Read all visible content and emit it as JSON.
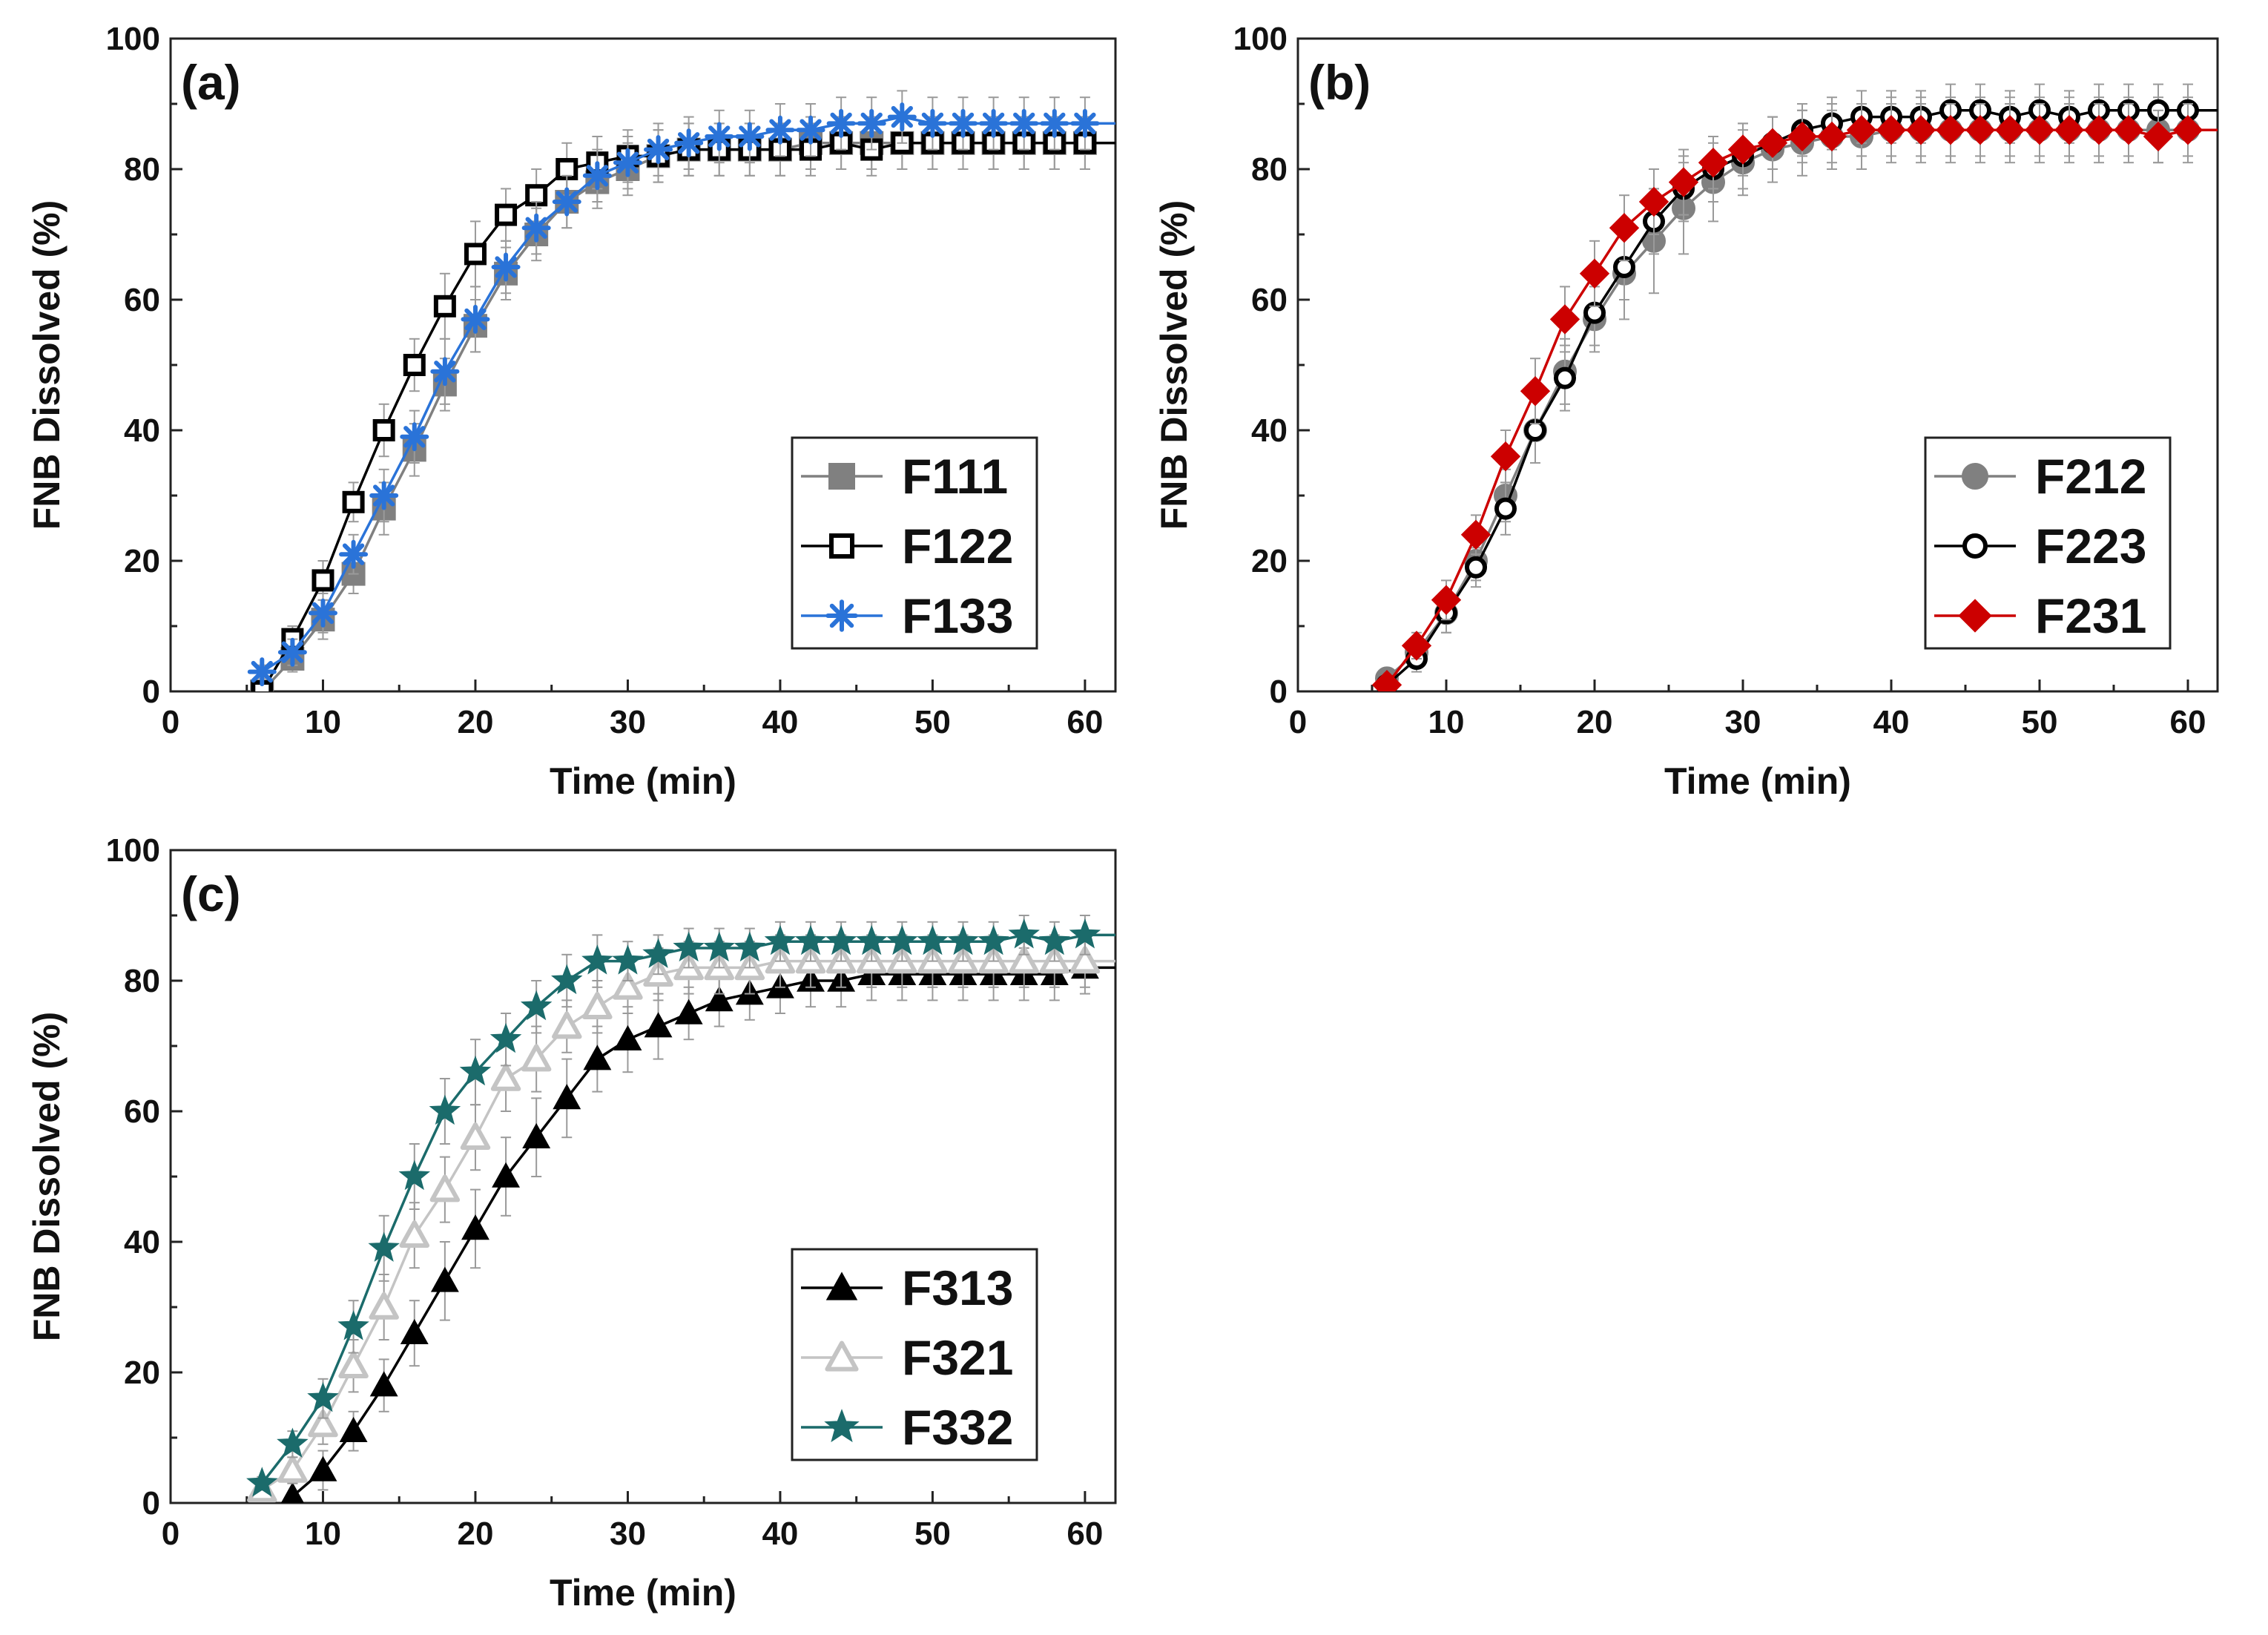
{
  "chart_data": [
    {
      "type": "line",
      "panel_label": "(a)",
      "xlabel": "Time (min)",
      "ylabel": "FNB Dissolved (%)",
      "xlim": [
        0,
        62
      ],
      "ylim": [
        0,
        100
      ],
      "xticks": [
        0,
        10,
        20,
        30,
        40,
        50,
        60
      ],
      "yticks": [
        0,
        20,
        40,
        60,
        80,
        100
      ],
      "legend_position": "bottom-right",
      "x": [
        6,
        8,
        10,
        12,
        14,
        16,
        18,
        20,
        22,
        24,
        26,
        28,
        30,
        32,
        34,
        36,
        38,
        40,
        42,
        44,
        46,
        48,
        50,
        52,
        54,
        56,
        58,
        60
      ],
      "series": [
        {
          "name": "F111",
          "marker": "square-filled",
          "color": "#808080",
          "values": [
            0,
            5,
            11,
            18,
            28,
            37,
            47,
            56,
            64,
            70,
            75,
            78,
            80,
            82,
            83,
            83,
            83,
            83,
            84,
            84,
            84,
            84,
            84,
            84,
            84,
            84,
            84,
            84
          ],
          "errors": [
            1,
            2,
            3,
            3,
            4,
            4,
            4,
            4,
            4,
            4,
            4,
            4,
            4,
            4,
            4,
            4,
            4,
            4,
            4,
            4,
            4,
            4,
            4,
            4,
            4,
            4,
            4,
            4
          ]
        },
        {
          "name": "F122",
          "marker": "square-open",
          "color": "#000000",
          "values": [
            0,
            8,
            17,
            29,
            40,
            50,
            59,
            67,
            73,
            76,
            80,
            81,
            82,
            82,
            83,
            83,
            83,
            83,
            83,
            84,
            83,
            84,
            84,
            84,
            84,
            84,
            84,
            84
          ],
          "errors": [
            1,
            2,
            3,
            3,
            4,
            4,
            5,
            5,
            4,
            4,
            4,
            4,
            4,
            4,
            4,
            4,
            4,
            4,
            4,
            4,
            4,
            4,
            4,
            4,
            4,
            4,
            4,
            4
          ]
        },
        {
          "name": "F133",
          "marker": "asterisk",
          "color": "#2a73d8",
          "values": [
            3,
            6,
            12,
            21,
            30,
            39,
            49,
            57,
            65,
            71,
            75,
            79,
            81,
            83,
            84,
            85,
            85,
            86,
            86,
            87,
            87,
            88,
            87,
            87,
            87,
            87,
            87,
            87
          ],
          "errors": [
            1,
            2,
            3,
            3,
            4,
            4,
            5,
            5,
            4,
            4,
            4,
            4,
            4,
            4,
            4,
            4,
            4,
            4,
            4,
            4,
            4,
            4,
            4,
            4,
            4,
            4,
            4,
            4
          ]
        }
      ]
    },
    {
      "type": "line",
      "panel_label": "(b)",
      "xlabel": "Time (min)",
      "ylabel": "FNB Dissolved (%)",
      "xlim": [
        0,
        62
      ],
      "ylim": [
        0,
        100
      ],
      "xticks": [
        0,
        10,
        20,
        30,
        40,
        50,
        60
      ],
      "yticks": [
        0,
        20,
        40,
        60,
        80,
        100
      ],
      "legend_position": "bottom-right",
      "x": [
        6,
        8,
        10,
        12,
        14,
        16,
        18,
        20,
        22,
        24,
        26,
        28,
        30,
        32,
        34,
        36,
        38,
        40,
        42,
        44,
        46,
        48,
        50,
        52,
        54,
        56,
        58,
        60
      ],
      "series": [
        {
          "name": "F212",
          "marker": "circle-filled",
          "color": "#808080",
          "values": [
            2,
            6,
            12,
            20,
            30,
            40,
            49,
            57,
            64,
            69,
            74,
            78,
            81,
            83,
            84,
            85,
            85,
            86,
            86,
            86,
            86,
            86,
            86,
            86,
            86,
            86,
            86,
            86
          ],
          "errors": [
            1,
            2,
            3,
            3,
            4,
            5,
            5,
            5,
            7,
            8,
            7,
            6,
            5,
            5,
            5,
            5,
            5,
            5,
            5,
            5,
            5,
            5,
            5,
            5,
            5,
            5,
            5,
            5
          ]
        },
        {
          "name": "F223",
          "marker": "circle-open",
          "color": "#000000",
          "values": [
            1,
            5,
            12,
            19,
            28,
            40,
            48,
            58,
            65,
            72,
            77,
            80,
            82,
            84,
            86,
            87,
            88,
            88,
            88,
            89,
            89,
            88,
            89,
            88,
            89,
            89,
            89,
            89
          ],
          "errors": [
            1,
            2,
            3,
            3,
            4,
            5,
            5,
            5,
            5,
            5,
            5,
            5,
            5,
            4,
            4,
            4,
            4,
            4,
            4,
            4,
            4,
            4,
            4,
            4,
            4,
            4,
            4,
            4
          ]
        },
        {
          "name": "F231",
          "marker": "diamond-filled",
          "color": "#cc0000",
          "values": [
            1,
            7,
            14,
            24,
            36,
            46,
            57,
            64,
            71,
            75,
            78,
            81,
            83,
            84,
            85,
            85,
            86,
            86,
            86,
            86,
            86,
            86,
            86,
            86,
            86,
            86,
            85,
            86
          ],
          "errors": [
            1,
            2,
            3,
            3,
            4,
            5,
            5,
            5,
            5,
            5,
            5,
            4,
            4,
            4,
            4,
            4,
            4,
            4,
            4,
            4,
            4,
            4,
            4,
            4,
            4,
            4,
            4,
            4
          ]
        }
      ]
    },
    {
      "type": "line",
      "panel_label": "(c)",
      "xlabel": "Time (min)",
      "ylabel": "FNB Dissolved (%)",
      "xlim": [
        0,
        62
      ],
      "ylim": [
        0,
        100
      ],
      "xticks": [
        0,
        10,
        20,
        30,
        40,
        50,
        60
      ],
      "yticks": [
        0,
        20,
        40,
        60,
        80,
        100
      ],
      "legend_position": "bottom-right",
      "x": [
        6,
        8,
        10,
        12,
        14,
        16,
        18,
        20,
        22,
        24,
        26,
        28,
        30,
        32,
        34,
        36,
        38,
        40,
        42,
        44,
        46,
        48,
        50,
        52,
        54,
        56,
        58,
        60
      ],
      "series": [
        {
          "name": "F313",
          "marker": "triangle-filled",
          "color": "#000000",
          "x": [
            8,
            10,
            12,
            14,
            16,
            18,
            20,
            22,
            24,
            26,
            28,
            30,
            32,
            34,
            36,
            38,
            40,
            42,
            44,
            46,
            48,
            50,
            52,
            54,
            56,
            58,
            60
          ],
          "values": [
            1,
            5,
            11,
            18,
            26,
            34,
            42,
            50,
            56,
            62,
            68,
            71,
            73,
            75,
            77,
            78,
            79,
            80,
            80,
            81,
            81,
            81,
            81,
            81,
            81,
            81,
            82
          ],
          "errors": [
            2,
            3,
            3,
            4,
            5,
            6,
            6,
            6,
            6,
            6,
            5,
            5,
            5,
            4,
            4,
            4,
            4,
            4,
            4,
            4,
            4,
            4,
            4,
            4,
            4,
            4,
            4
          ]
        },
        {
          "name": "F321",
          "marker": "triangle-open",
          "color": "#c4c4c4",
          "values": [
            2,
            5,
            12,
            21,
            30,
            41,
            48,
            56,
            65,
            68,
            73,
            76,
            79,
            81,
            82,
            82,
            82,
            83,
            83,
            83,
            83,
            83,
            83,
            83,
            83,
            83,
            83,
            83
          ],
          "errors": [
            1,
            2,
            3,
            4,
            5,
            5,
            5,
            5,
            5,
            5,
            4,
            4,
            4,
            4,
            4,
            4,
            4,
            4,
            4,
            4,
            4,
            4,
            4,
            4,
            4,
            4,
            4,
            4
          ]
        },
        {
          "name": "F332",
          "marker": "star",
          "color": "#1b6b6b",
          "values": [
            3,
            9,
            16,
            27,
            39,
            50,
            60,
            66,
            71,
            76,
            80,
            83,
            83,
            84,
            85,
            85,
            85,
            86,
            86,
            86,
            86,
            86,
            86,
            86,
            86,
            87,
            86,
            87
          ],
          "errors": [
            1,
            2,
            3,
            4,
            5,
            5,
            5,
            5,
            4,
            4,
            4,
            4,
            3,
            3,
            3,
            3,
            3,
            3,
            3,
            3,
            3,
            3,
            3,
            3,
            3,
            3,
            3,
            3
          ]
        }
      ]
    }
  ]
}
